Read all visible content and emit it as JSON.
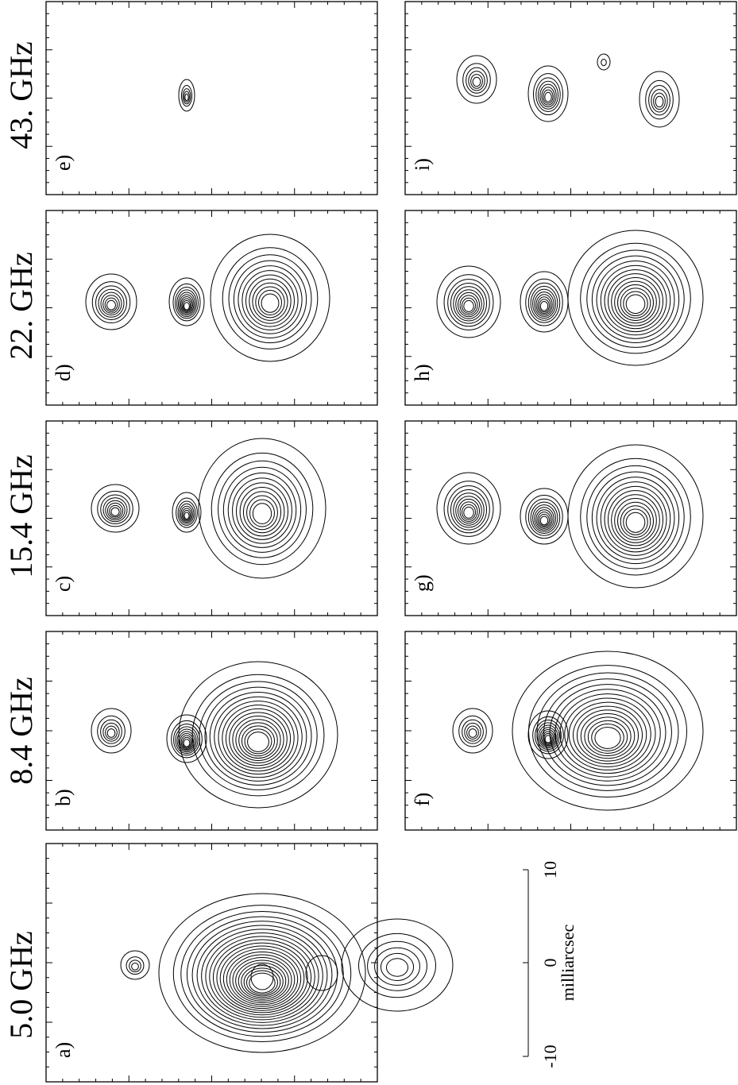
{
  "frequencies": [
    "5.0 GHz",
    "8.4 GHz",
    "15.4 GHz",
    "22. GHz",
    "43. GHz"
  ],
  "panels": [
    "a)",
    "b)",
    "c)",
    "d)",
    "e)",
    "f)",
    "g)",
    "h)",
    "i)"
  ],
  "scale_bar": {
    "ticks": [
      "-10",
      "0",
      "10"
    ],
    "label": "milliarcsec"
  }
}
